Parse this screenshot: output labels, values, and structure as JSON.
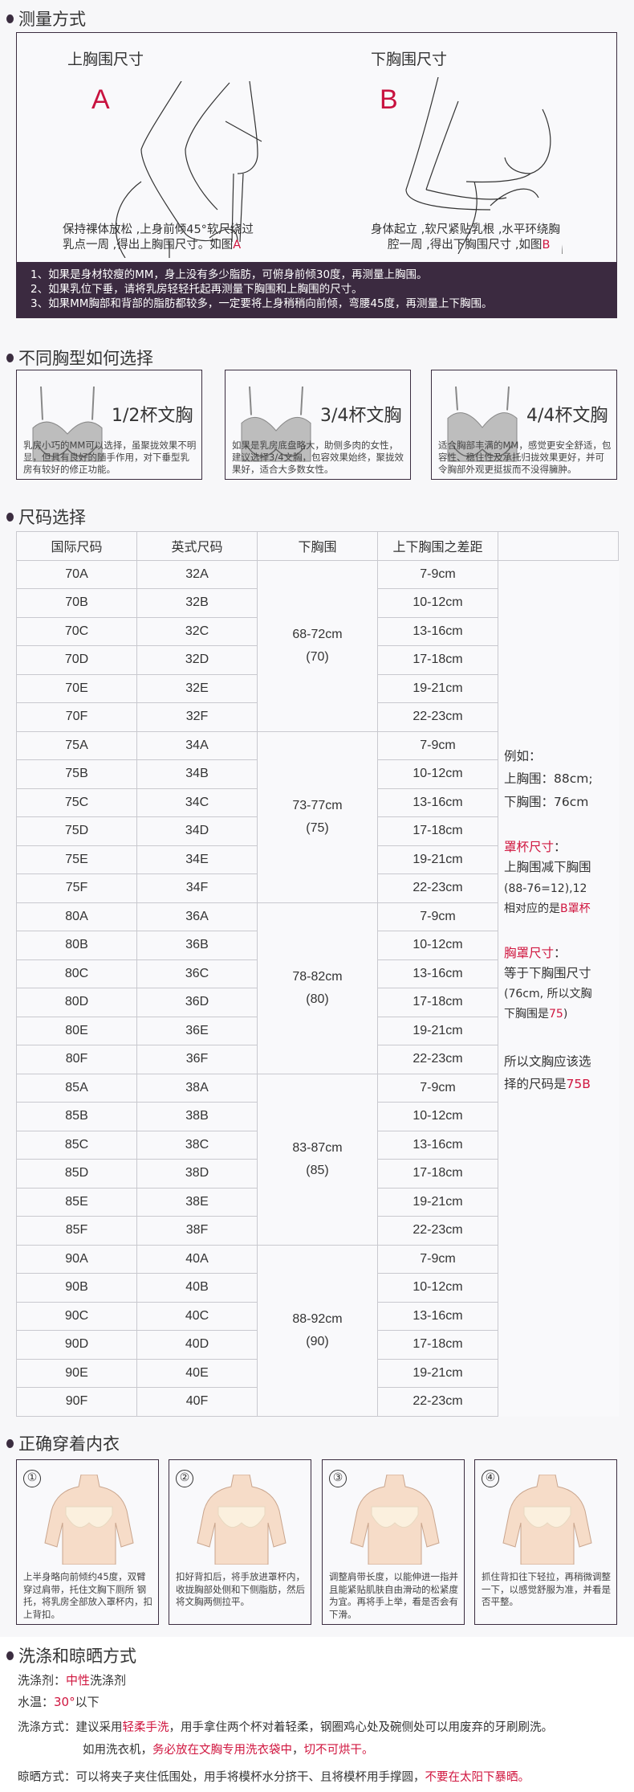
{
  "colors": {
    "accent": "#d0163f",
    "dark": "#3b2a40",
    "background": "#f7f7f9"
  },
  "measure": {
    "title": "测量方式",
    "upper": {
      "title": "上胸围尺寸",
      "letter": "A",
      "caption_line1": "保持裸体放松 ,上身前倾45°软尺绕过",
      "caption_line2": "乳点一周 ,得出上胸围尺寸。如图",
      "caption_ref": "A"
    },
    "lower": {
      "title": "下胸围尺寸",
      "letter": "B",
      "caption_line1": "身体起立 ,软尺紧贴乳根 ,水平环绕胸",
      "caption_line2": "腔一周 ,得出下胸围尺寸 ,如图",
      "caption_ref": "B"
    },
    "tips": [
      "1、如果是身材较瘦的MM，身上没有多少脂肪，可俯身前倾30度，再测量上胸围。",
      "2、如果乳位下垂，请将乳房轻轻托起再测量下胸围和上胸围的尺寸。",
      "3、如果MM胸部和背部的脂肪都较多，一定要将上身稍稍向前倾，弯腰45度，再测量上下胸围。"
    ]
  },
  "cups": {
    "title": "不同胸型如何选择",
    "items": [
      {
        "label": "1/2杯文胸",
        "desc": "乳房小巧的MM可以选择，虽聚拢效果不明显，但具有良好的随手作用，对下垂型乳房有较好的修正功能。"
      },
      {
        "label": "3/4杯文胸",
        "desc": "如果是乳房底盘略大，助侧多肉的女性，建议选择3/4文胸，包容效果始终，聚拢效果好，适合大多数女性。"
      },
      {
        "label": "4/4杯文胸",
        "desc": "适合胸部丰满的MM，感觉更安全舒适，包容性、稳住性及承托归拢效果更好，并可令胸部外观更挺拔而不没得臃肿。"
      }
    ]
  },
  "size": {
    "title": "尺码选择",
    "headers": [
      "国际尺码",
      "英式尺码",
      "下胸围",
      "上下胸围之差距"
    ],
    "diffs": [
      "7-9cm",
      "10-12cm",
      "13-16cm",
      "17-18cm",
      "19-21cm",
      "22-23cm"
    ],
    "groups": [
      {
        "intl": [
          "70A",
          "70B",
          "70C",
          "70D",
          "70E",
          "70F"
        ],
        "uk": [
          "32A",
          "32B",
          "32C",
          "32D",
          "32E",
          "32F"
        ],
        "under": "68-72cm",
        "under_code": "(70)"
      },
      {
        "intl": [
          "75A",
          "75B",
          "75C",
          "75D",
          "75E",
          "75F"
        ],
        "uk": [
          "34A",
          "34B",
          "34C",
          "34D",
          "34E",
          "34F"
        ],
        "under": "73-77cm",
        "under_code": "(75)"
      },
      {
        "intl": [
          "80A",
          "80B",
          "80C",
          "80D",
          "80E",
          "80F"
        ],
        "uk": [
          "36A",
          "36B",
          "36C",
          "36D",
          "36E",
          "36F"
        ],
        "under": "78-82cm",
        "under_code": "(80)"
      },
      {
        "intl": [
          "85A",
          "85B",
          "85C",
          "85D",
          "85E",
          "85F"
        ],
        "uk": [
          "38A",
          "38B",
          "38C",
          "38D",
          "38E",
          "38F"
        ],
        "under": "83-87cm",
        "under_code": "(85)"
      },
      {
        "intl": [
          "90A",
          "90B",
          "90C",
          "90D",
          "90E",
          "90F"
        ],
        "uk": [
          "40A",
          "40B",
          "40C",
          "40D",
          "40E",
          "40F"
        ],
        "under": "88-92cm",
        "under_code": "(90)"
      }
    ],
    "example": {
      "l1": "例如：",
      "l2": "上胸围：88cm;",
      "l3": "下胸围：76cm",
      "cup_title": "罩杯尺寸",
      "colon": "：",
      "cup_l1": "上胸围减下胸围",
      "cup_l2": "(88-76=12),12",
      "cup_l3": "相对应的是",
      "cup_result": "B罩杯",
      "band_title": "胸罩尺寸",
      "band_l1": "等于下胸围尺寸",
      "band_l2": "(76cm, 所以文胸",
      "band_l3": "下胸围是",
      "band_result": "75",
      "band_close": ")",
      "final_l1": "所以文胸应该选",
      "final_l2": "择的尺码是",
      "final_result": "75B"
    }
  },
  "wear": {
    "title": "正确穿着内衣",
    "steps": [
      {
        "num": "①",
        "desc": "上半身略向前倾约45度，双臂穿过肩带，托住文胸下厕所 钢托，将乳房全部放入罩杯内，扣上背扣。"
      },
      {
        "num": "②",
        "desc": "扣好背扣后，将手放进罩杯内，收拢胸部处侧和下侧脂肪，然后将文胸两侧拉平。"
      },
      {
        "num": "③",
        "desc": "调整肩带长度，以能伸进一指并且能紧贴肌肤自由滑动的松紧度为宜。再将手上举，看是否会有下滑。"
      },
      {
        "num": "④",
        "desc": "抓住背扣往下轻拉，再稍微调整一下，以感觉舒服为准，并看是否平整。"
      }
    ]
  },
  "wash": {
    "title": "洗涤和晾晒方式",
    "detergent_label": "洗涤剂：",
    "detergent_red": "中性",
    "detergent_rest": "洗涤剂",
    "temp_label": "水温：",
    "temp_red": "30°",
    "temp_rest": "以下",
    "method_label": "洗涤方式：",
    "method_a": "建议采用",
    "method_red": "轻柔手洗",
    "method_b": "，用手拿住两个杯对着轻柔，钢圈鸡心处及碗侧处可以用废弃的牙刷刷洗。",
    "machine_a": "如用洗衣机，",
    "machine_red1": "务必放在文胸专用洗衣袋中",
    "machine_b": "，",
    "machine_red2": "切不可烘干。",
    "dry_label": "晾晒方式：",
    "dry_a": "可以将夹子夹住低围处，用手将模杯水分挤干、且将模杯用手撑圆，",
    "dry_red": "不要在太阳下暴晒。"
  }
}
